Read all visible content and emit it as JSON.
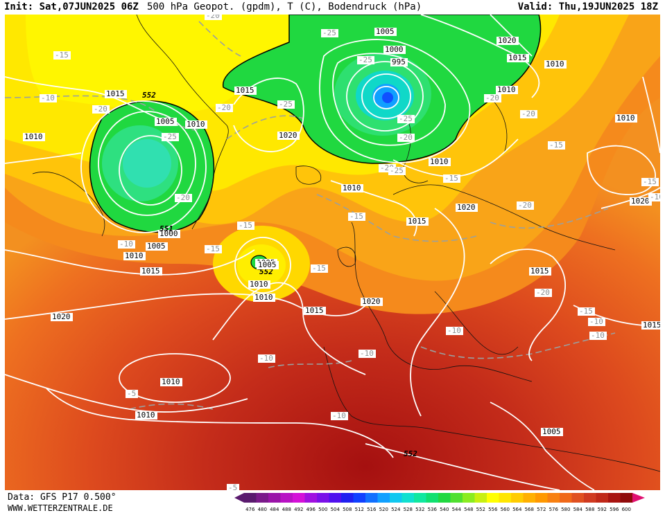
{
  "header": {
    "init": "Init: Sat,07JUN2025 06Z",
    "title": "500 hPa Geopot. (gpdm), T (C), Bodendruck (hPa)",
    "valid": "Valid: Thu,19JUN2025 18Z"
  },
  "footer": {
    "data": "Data: GFS P17 0.500°",
    "website": "WWW.WETTERZENTRALE.DE"
  },
  "scale": {
    "values": [
      "476",
      "480",
      "484",
      "488",
      "492",
      "496",
      "500",
      "504",
      "508",
      "512",
      "516",
      "520",
      "524",
      "528",
      "532",
      "536",
      "540",
      "544",
      "548",
      "552",
      "556",
      "560",
      "564",
      "568",
      "572",
      "576",
      "580",
      "584",
      "588",
      "592",
      "596",
      "600"
    ],
    "colors": [
      "#5a1a6e",
      "#7a1a8a",
      "#9a14a8",
      "#b812c4",
      "#d410d8",
      "#a010e0",
      "#7a10e8",
      "#5010ee",
      "#2020f0",
      "#1040ff",
      "#1070ff",
      "#10a0ff",
      "#10c8f0",
      "#10e0d0",
      "#10e8a0",
      "#10e070",
      "#20d840",
      "#50e030",
      "#8aec20",
      "#c8f010",
      "#ffff00",
      "#ffe600",
      "#ffcc00",
      "#ffb000",
      "#ff9800",
      "#f88010",
      "#f06818",
      "#e05020",
      "#d03a20",
      "#c02818",
      "#a81410",
      "#900a0a"
    ]
  },
  "map": {
    "pressure_labels": [
      "1005",
      "1000",
      "995",
      "1010",
      "1015",
      "552",
      "1005",
      "1010",
      "1015",
      "1010",
      "1020",
      "1015",
      "1010",
      "1020",
      "1000",
      "1005",
      "1010",
      "1015",
      "1020",
      "1005",
      "552",
      "1010",
      "1015",
      "1020",
      "1015",
      "1020",
      "1015",
      "1010",
      "1010",
      "1020",
      "1015",
      "1010",
      "1010",
      "1005",
      "552",
      "1010",
      "551",
      "1005",
      "1010"
    ],
    "temp_labels": [
      "-25",
      "-20",
      "-25",
      "-20",
      "-25",
      "-25",
      "-20",
      "-15",
      "-10",
      "-20",
      "-15",
      "-20",
      "-25",
      "-20",
      "-15",
      "-15",
      "-15",
      "-15",
      "-20",
      "-20",
      "-20",
      "-15",
      "-10",
      "-15",
      "-10",
      "-10",
      "-10",
      "-10",
      "-10",
      "-15",
      "-10",
      "-5",
      "-5",
      "-20",
      "-10",
      "-25"
    ]
  }
}
